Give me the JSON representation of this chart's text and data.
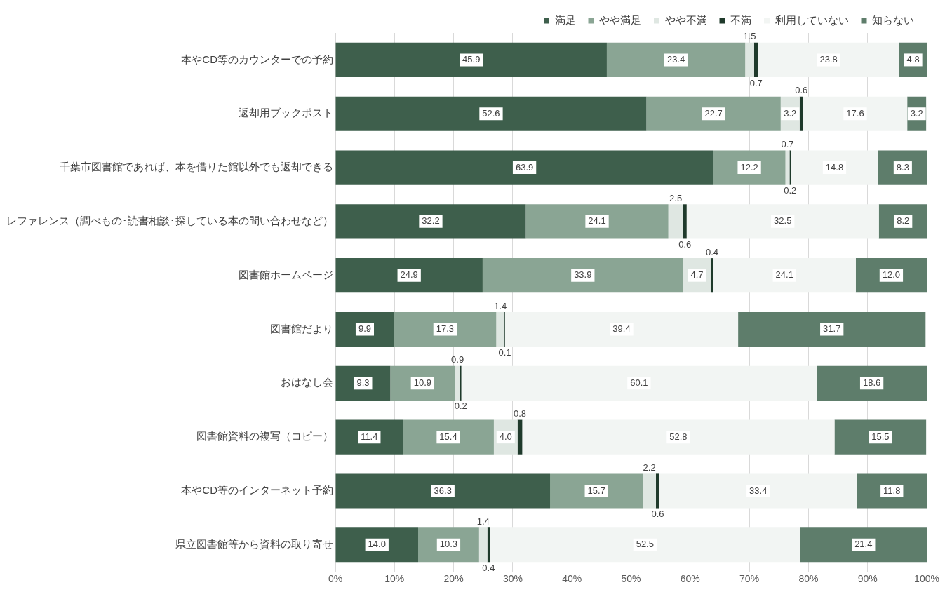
{
  "chart_data": {
    "type": "bar",
    "orientation": "horizontal",
    "stacked": true,
    "grid": "x",
    "legend": "top",
    "categories": [
      "本やCD等のカウンターでの予約",
      "返却用ブックポスト",
      "千葉市図書館であれば、本を借りた館以外でも返却できる",
      "レファレンス（調べもの･読書相談･探している本の問い合わせなど）",
      "図書館ホームページ",
      "図書館だより",
      "おはなし会",
      "図書館資料の複写（コピー）",
      "本やCD等のインターネット予約",
      "県立図書館等から資料の取り寄せ"
    ],
    "series": [
      {
        "name": "満足",
        "color": "#3e5f4c",
        "values": [
          45.9,
          52.6,
          63.9,
          32.2,
          24.9,
          9.9,
          9.3,
          11.4,
          36.3,
          14.0
        ],
        "value_labels": [
          "45.9",
          "52.6",
          "63.9",
          "32.2",
          "24.9",
          "9.9",
          "9.3",
          "11.4",
          "36.3",
          "14.0"
        ]
      },
      {
        "name": "やや満足",
        "color": "#8aa594",
        "values": [
          23.4,
          22.7,
          12.2,
          24.1,
          33.9,
          17.3,
          10.9,
          15.4,
          15.7,
          10.3
        ],
        "value_labels": [
          "23.4",
          "22.7",
          "12.2",
          "24.1",
          "33.9",
          "17.3",
          "10.9",
          "15.4",
          "15.7",
          "10.3"
        ]
      },
      {
        "name": "やや不満",
        "color": "#dfe7e2",
        "values": [
          1.5,
          3.2,
          0.7,
          2.5,
          4.7,
          1.4,
          0.9,
          4.0,
          2.2,
          1.4
        ],
        "value_labels": [
          "1.5",
          "3.2",
          "0.7",
          "2.5",
          "4.7",
          "1.4",
          "0.9",
          "4.0",
          "2.2",
          "1.4"
        ]
      },
      {
        "name": "不満",
        "color": "#1f3a2b",
        "values": [
          0.7,
          0.6,
          0.2,
          0.6,
          0.4,
          0.1,
          0.2,
          0.8,
          0.6,
          0.4
        ],
        "value_labels": [
          "0.7",
          "0.6",
          "0.2",
          "0.6",
          "0.4",
          "0.1",
          "0.2",
          "0.8",
          "0.6",
          "0.4"
        ]
      },
      {
        "name": "利用していない",
        "color": "#f2f5f3",
        "values": [
          23.8,
          17.6,
          14.8,
          32.5,
          24.1,
          39.4,
          60.1,
          52.8,
          33.4,
          52.5
        ],
        "value_labels": [
          "23.8",
          "17.6",
          "14.8",
          "32.5",
          "24.1",
          "39.4",
          "60.1",
          "52.8",
          "33.4",
          "52.5"
        ]
      },
      {
        "name": "知らない",
        "color": "#5e7d6b",
        "values": [
          4.8,
          3.2,
          8.3,
          8.2,
          12.0,
          31.7,
          18.6,
          15.5,
          11.8,
          21.4
        ],
        "value_labels": [
          "4.8",
          "3.2",
          "8.3",
          "8.2",
          "12.0",
          "31.7",
          "18.6",
          "15.5",
          "11.8",
          "21.4"
        ]
      }
    ],
    "xlim": [
      0,
      100
    ],
    "xticks": [
      {
        "value": 0,
        "label": "0%"
      },
      {
        "value": 10,
        "label": "10%"
      },
      {
        "value": 20,
        "label": "20%"
      },
      {
        "value": 30,
        "label": "30%"
      },
      {
        "value": 40,
        "label": "40%"
      },
      {
        "value": 50,
        "label": "50%"
      },
      {
        "value": 60,
        "label": "60%"
      },
      {
        "value": 70,
        "label": "70%"
      },
      {
        "value": 80,
        "label": "80%"
      },
      {
        "value": 90,
        "label": "90%"
      },
      {
        "value": 100,
        "label": "100%"
      }
    ]
  }
}
